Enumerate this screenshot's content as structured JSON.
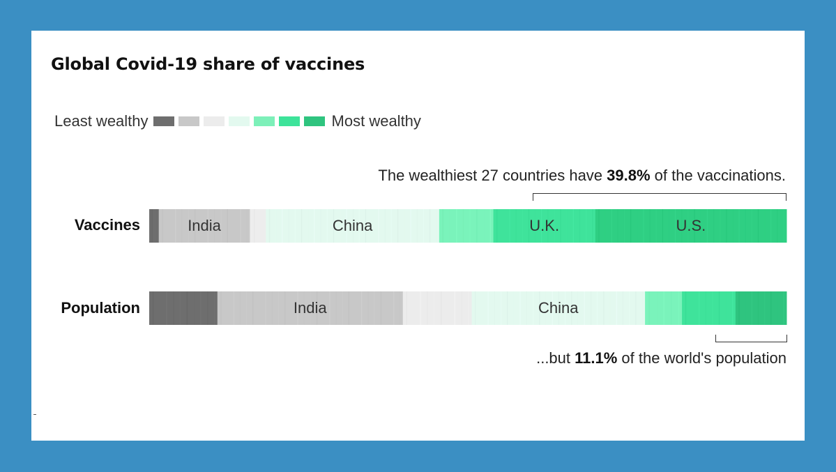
{
  "title": "Global Covid-19 share of vaccines",
  "legend": {
    "left_label": "Least wealthy",
    "right_label": "Most wealthy",
    "colors": [
      "#6e6e6e",
      "#c8c8c8",
      "#ececec",
      "#e3f9ef",
      "#7df0b9",
      "#3de39a",
      "#2fc47f"
    ]
  },
  "annotations": {
    "top_prefix": "The wealthiest 27 countries have ",
    "top_value": "39.8%",
    "top_suffix": " of the vaccinations.",
    "bottom_prefix": "...but ",
    "bottom_value": "11.1%",
    "bottom_suffix": " of the world's population"
  },
  "chart_data": {
    "type": "bar",
    "orientation": "horizontal",
    "stacked": true,
    "normalized_to": 100,
    "title": "Global Covid-19 share of vaccines",
    "legend": {
      "left_label": "Least wealthy",
      "right_label": "Most wealthy",
      "placement": "top-left"
    },
    "series": [
      {
        "name": "Vaccines",
        "segments": [
          {
            "tier": 1,
            "share": 1.5,
            "color": "#6e6e6e"
          },
          {
            "tier": 2,
            "share": 14.3,
            "color": "#c8c8c8",
            "label": "India"
          },
          {
            "tier": 3,
            "share": 2.5,
            "color": "#ededed"
          },
          {
            "tier": 4,
            "share": 27.2,
            "color": "#e3f9ef",
            "label": "China"
          },
          {
            "tier": 5,
            "share": 8.5,
            "color": "#7af3bb"
          },
          {
            "tier": 6,
            "share": 16.0,
            "color": "#3fe39b",
            "label": "U.K."
          },
          {
            "tier": 7,
            "share": 30.0,
            "color": "#2fcf83",
            "label": "U.S."
          }
        ]
      },
      {
        "name": "Population",
        "segments": [
          {
            "tier": 1,
            "share": 10.7,
            "color": "#6e6e6e"
          },
          {
            "tier": 2,
            "share": 29.1,
            "color": "#c8c8c8",
            "label": "India"
          },
          {
            "tier": 3,
            "share": 10.8,
            "color": "#ececec"
          },
          {
            "tier": 4,
            "share": 27.2,
            "color": "#e3f9ef",
            "label": "China"
          },
          {
            "tier": 5,
            "share": 5.8,
            "color": "#7af3bb"
          },
          {
            "tier": 6,
            "share": 8.4,
            "color": "#3fe39b"
          },
          {
            "tier": 7,
            "share": 8.0,
            "color": "#2fc47f"
          }
        ]
      }
    ],
    "highlight": {
      "wealthiest_countries": 27,
      "vaccine_share_pct": 39.8,
      "population_share_pct": 11.1
    }
  }
}
